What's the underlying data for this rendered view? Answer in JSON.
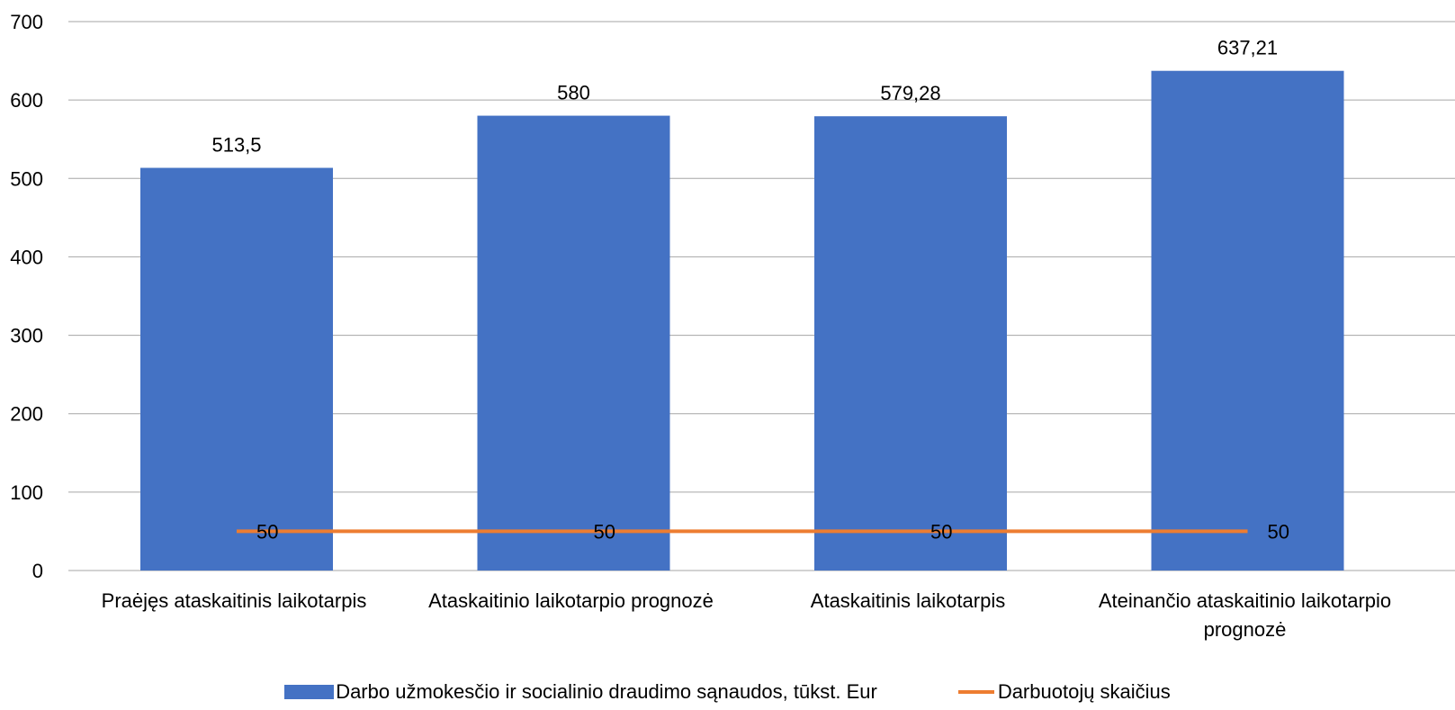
{
  "chart_data": {
    "type": "bar",
    "categories": [
      [
        "Praėjęs ataskaitinis laikotarpis"
      ],
      [
        "Ataskaitinio laikotarpio prognozė"
      ],
      [
        "Ataskaitinis laikotarpis"
      ],
      [
        "Ateinančio ataskaitinio laikotarpio",
        "prognozė"
      ]
    ],
    "series": [
      {
        "name": "Darbo užmokesčio ir socialinio draudimo sąnaudos, tūkst. Eur",
        "type": "bar",
        "color": "#4472C4",
        "values": [
          513.5,
          580,
          579.28,
          637.21
        ],
        "labels": [
          "513,5",
          "580",
          "579,28",
          "637,21"
        ]
      },
      {
        "name": "Darbuotojų skaičius",
        "type": "line",
        "color": "#ED7D31",
        "values": [
          50,
          50,
          50,
          50
        ],
        "labels": [
          "50",
          "50",
          "50",
          "50"
        ]
      }
    ],
    "ylim": [
      0,
      700
    ],
    "yticks": [
      "0",
      "100",
      "200",
      "300",
      "400",
      "500",
      "600",
      "700"
    ],
    "grid": true,
    "legend_position": "bottom"
  }
}
